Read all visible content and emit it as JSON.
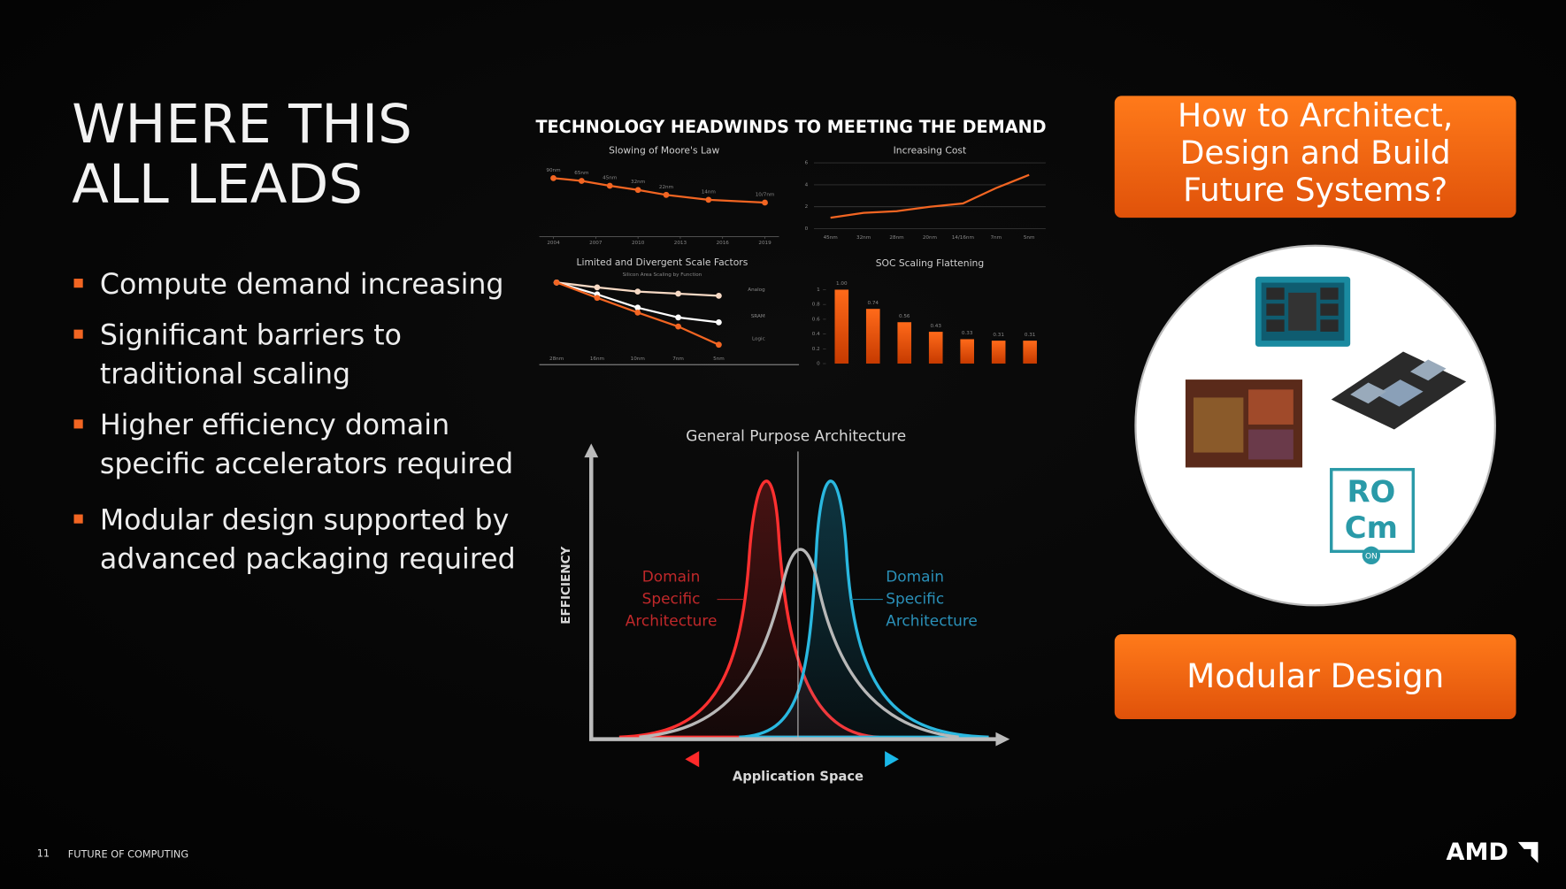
{
  "title": [
    "WHERE THIS",
    "ALL LEADS"
  ],
  "bullets": [
    [
      "Compute demand increasing"
    ],
    [
      "Significant barriers to",
      "traditional scaling"
    ],
    [
      "Higher efficiency domain",
      "specific accelerators required"
    ],
    [
      "Modular design supported by",
      "advanced packaging required"
    ]
  ],
  "charts_heading": "TECHNOLOGY HEADWINDS TO MEETING THE DEMAND",
  "chart_data": [
    {
      "type": "line",
      "title": "Slowing of Moore's Law",
      "x": [
        2004,
        2006,
        2008,
        2010,
        2012,
        2015,
        2019
      ],
      "xlim": [
        2003,
        2020
      ],
      "xticks": [
        2004,
        2007,
        2010,
        2013,
        2016,
        2019
      ],
      "ylim": [
        0,
        1
      ],
      "point_labels": [
        "90nm",
        "65nm",
        "45nm",
        "32nm",
        "22nm",
        "14nm",
        "10/7nm"
      ],
      "series": [
        {
          "color": "#f26522",
          "values": [
            0.81,
            0.77,
            0.7,
            0.64,
            0.57,
            0.5,
            0.46
          ]
        },
        {
          "color": "#ffffff",
          "dashed": true,
          "values": [
            null,
            null,
            null,
            null,
            0.57,
            null,
            0.33
          ]
        }
      ]
    },
    {
      "type": "line",
      "title": "Increasing Cost",
      "categories": [
        "45nm",
        "32nm",
        "28nm",
        "20nm",
        "14/16nm",
        "7nm",
        "5nm"
      ],
      "ylim": [
        0,
        6
      ],
      "yticks": [
        0,
        2,
        4,
        6
      ],
      "grid": true,
      "series": [
        {
          "color": "#f26522",
          "values": [
            1.0,
            1.45,
            1.6,
            2.0,
            2.3,
            3.7,
            4.9
          ]
        }
      ]
    },
    {
      "type": "line",
      "title": "Limited and Divergent Scale Factors",
      "subtitle": "Silicon Area Scaling by Function",
      "categories": [
        "28nm",
        "16nm",
        "10nm",
        "7nm",
        "5nm"
      ],
      "ylim": [
        0,
        1
      ],
      "series": [
        {
          "name": "Analog",
          "color": "#f6d9c4",
          "values": [
            0.96,
            0.89,
            0.83,
            0.8,
            0.77
          ]
        },
        {
          "name": "SRAM",
          "color": "#ffffff",
          "values": [
            0.96,
            0.79,
            0.6,
            0.46,
            0.39
          ]
        },
        {
          "name": "Logic",
          "color": "#f26522",
          "values": [
            0.96,
            0.74,
            0.53,
            0.33,
            0.07
          ]
        }
      ]
    },
    {
      "type": "bar",
      "title": "SOC Scaling Flattening",
      "categories": [
        null,
        null,
        null,
        null,
        null,
        null,
        null
      ],
      "values": [
        1.0,
        0.74,
        0.56,
        0.43,
        0.33,
        0.31,
        0.31
      ],
      "value_labels": [
        "1.00",
        "0.74",
        "0.56",
        "0.43",
        "0.33",
        "0.31",
        "0.31"
      ],
      "color": "#f26522",
      "ylim": [
        0,
        1
      ],
      "yticks": [
        0,
        0.2,
        0.4,
        0.6,
        0.8,
        1
      ]
    }
  ],
  "diagram": {
    "title": "General Purpose Architecture",
    "y_label": "EFFICIENCY",
    "x_label": "Application Space",
    "left_label": [
      "Domain",
      "Specific",
      "Architecture"
    ],
    "right_label": [
      "Domain",
      "Specific",
      "Architecture"
    ]
  },
  "question_box": [
    "How to Architect,",
    "Design and Build",
    "Future Systems?"
  ],
  "logo_texts": [
    "RO",
    "Cm",
    "ON"
  ],
  "answer_box": "Modular Design",
  "footer": {
    "page": "11",
    "text": "FUTURE OF COMPUTING",
    "brand": "AMD"
  }
}
